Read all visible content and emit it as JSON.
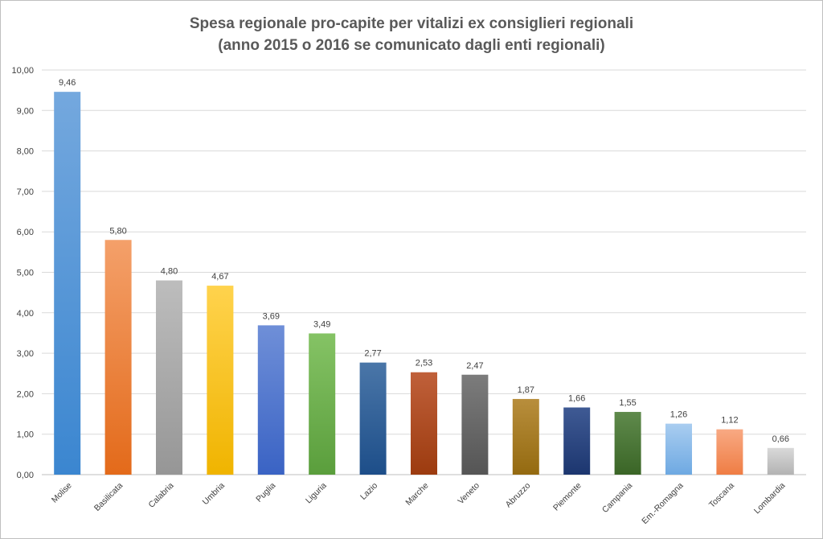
{
  "chart_data": {
    "type": "bar",
    "title_lines": [
      "Spesa regionale pro-capite per vitalizi ex consiglieri regionali",
      "(anno 2015 o 2016 se comunicato dagli enti regionali)"
    ],
    "categories": [
      "Molise",
      "Basilicata",
      "Calabria",
      "Umbria",
      "Puglia",
      "Liguria",
      "Lazio",
      "Marche",
      "Veneto",
      "Abruzzo",
      "Piemonte",
      "Campania",
      "Em.-Romagna",
      "Toscana",
      "Lombardia"
    ],
    "values": [
      9.46,
      5.8,
      4.8,
      4.67,
      3.69,
      3.49,
      2.77,
      2.53,
      2.47,
      1.87,
      1.66,
      1.55,
      1.26,
      1.12,
      0.66
    ],
    "value_labels": [
      "9,46",
      "5,80",
      "4,80",
      "4,67",
      "3,69",
      "3,49",
      "2,77",
      "2,53",
      "2,47",
      "1,87",
      "1,66",
      "1,55",
      "1,26",
      "1,12",
      "0,66"
    ],
    "ylim": [
      0,
      10
    ],
    "yticks": [
      0,
      1,
      2,
      3,
      4,
      5,
      6,
      7,
      8,
      9,
      10
    ],
    "ytick_labels": [
      "0,00",
      "1,00",
      "2,00",
      "3,00",
      "4,00",
      "5,00",
      "6,00",
      "7,00",
      "8,00",
      "9,00",
      "10,00"
    ],
    "xlabel": "",
    "ylabel": "",
    "grid": true,
    "legend": "none",
    "bar_colors": [
      [
        "#74a8de",
        "#3b86d0"
      ],
      [
        "#f4a06a",
        "#e36a1a"
      ],
      [
        "#bdbdbd",
        "#969696"
      ],
      [
        "#ffd34d",
        "#f0b400"
      ],
      [
        "#6f8fd8",
        "#3a63c4"
      ],
      [
        "#85c365",
        "#5a9e3c"
      ],
      [
        "#4a76a8",
        "#1d4e89"
      ],
      [
        "#c0603a",
        "#9c3b0f"
      ],
      [
        "#7c7c7c",
        "#555555"
      ],
      [
        "#b88e3c",
        "#946a10"
      ],
      [
        "#3f5a94",
        "#1c366f"
      ],
      [
        "#5f8a4c",
        "#3a6526"
      ],
      [
        "#a9cdf0",
        "#6ea9e2"
      ],
      [
        "#f8a983",
        "#ef7d44"
      ],
      [
        "#d9d9d9",
        "#b3b3b3"
      ]
    ]
  }
}
